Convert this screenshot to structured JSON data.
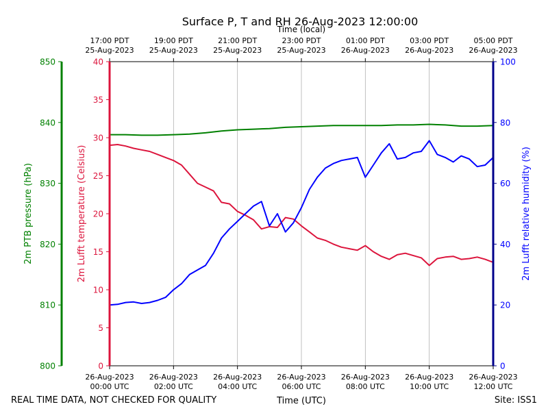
{
  "chart_data": {
    "type": "line",
    "title": "Surface P, T and RH 26-Aug-2023 12:00:00",
    "top_axis_label": "Time (local)",
    "bottom_axis_label": "Time (UTC)",
    "x_range_hours_utc": [
      0,
      12
    ],
    "top_ticks": [
      {
        "hour": 0,
        "time": "17:00 PDT",
        "date": "25-Aug-2023"
      },
      {
        "hour": 2,
        "time": "19:00 PDT",
        "date": "25-Aug-2023"
      },
      {
        "hour": 4,
        "time": "21:00 PDT",
        "date": "25-Aug-2023"
      },
      {
        "hour": 6,
        "time": "23:00 PDT",
        "date": "25-Aug-2023"
      },
      {
        "hour": 8,
        "time": "01:00 PDT",
        "date": "26-Aug-2023"
      },
      {
        "hour": 10,
        "time": "03:00 PDT",
        "date": "26-Aug-2023"
      },
      {
        "hour": 12,
        "time": "05:00 PDT",
        "date": "26-Aug-2023"
      }
    ],
    "bottom_ticks": [
      {
        "hour": 0,
        "date": "26-Aug-2023",
        "time": "00:00 UTC"
      },
      {
        "hour": 2,
        "date": "26-Aug-2023",
        "time": "02:00 UTC"
      },
      {
        "hour": 4,
        "date": "26-Aug-2023",
        "time": "04:00 UTC"
      },
      {
        "hour": 6,
        "date": "26-Aug-2023",
        "time": "06:00 UTC"
      },
      {
        "hour": 8,
        "date": "26-Aug-2023",
        "time": "08:00 UTC"
      },
      {
        "hour": 10,
        "date": "26-Aug-2023",
        "time": "10:00 UTC"
      },
      {
        "hour": 12,
        "date": "26-Aug-2023",
        "time": "12:00 UTC"
      }
    ],
    "axes": {
      "pressure": {
        "label": "2m PTB pressure (hPa)",
        "range": [
          800,
          850
        ],
        "ticks": [
          800,
          810,
          820,
          830,
          840,
          850
        ],
        "color": "#008000"
      },
      "temperature": {
        "label": "2m Lufft temperature (Celsius)",
        "range": [
          0,
          40
        ],
        "ticks": [
          0,
          5,
          10,
          15,
          20,
          25,
          30,
          35,
          40
        ],
        "color": "#dc143c"
      },
      "humidity": {
        "label": "2m Lufft relative humidity (%)",
        "range": [
          0,
          100
        ],
        "ticks": [
          0,
          20,
          40,
          60,
          80,
          100
        ],
        "color": "#0000ff"
      }
    },
    "series": [
      {
        "name": "pressure",
        "axis": "pressure",
        "color": "#008000",
        "x": [
          0,
          0.5,
          1,
          1.5,
          2,
          2.5,
          3,
          3.5,
          4,
          4.5,
          5,
          5.5,
          6,
          6.5,
          7,
          7.5,
          8,
          8.5,
          9,
          9.5,
          10,
          10.5,
          11,
          11.5,
          12
        ],
        "values": [
          838.0,
          838.0,
          837.9,
          837.9,
          838.0,
          838.1,
          838.3,
          838.6,
          838.8,
          838.9,
          839.0,
          839.2,
          839.3,
          839.4,
          839.5,
          839.5,
          839.5,
          839.5,
          839.6,
          839.6,
          839.7,
          839.6,
          839.4,
          839.4,
          839.5
        ]
      },
      {
        "name": "temperature",
        "axis": "temperature",
        "color": "#dc143c",
        "x": [
          0,
          0.25,
          0.5,
          0.75,
          1,
          1.25,
          1.5,
          1.75,
          2,
          2.25,
          2.5,
          2.75,
          3,
          3.25,
          3.5,
          3.75,
          4,
          4.25,
          4.5,
          4.75,
          5,
          5.25,
          5.5,
          5.75,
          6,
          6.25,
          6.5,
          6.75,
          7,
          7.25,
          7.5,
          7.75,
          8,
          8.25,
          8.5,
          8.75,
          9,
          9.25,
          9.5,
          9.75,
          10,
          10.25,
          10.5,
          10.75,
          11,
          11.25,
          11.5,
          11.75,
          12
        ],
        "values": [
          29.0,
          29.1,
          28.9,
          28.6,
          28.4,
          28.2,
          27.8,
          27.4,
          27.0,
          26.4,
          25.2,
          24.0,
          23.5,
          23.0,
          21.5,
          21.3,
          20.3,
          19.8,
          19.2,
          18.0,
          18.3,
          18.2,
          19.5,
          19.3,
          18.4,
          17.6,
          16.8,
          16.5,
          16.0,
          15.6,
          15.4,
          15.2,
          15.8,
          15.0,
          14.4,
          14.0,
          14.6,
          14.8,
          14.5,
          14.2,
          13.2,
          14.1,
          14.3,
          14.4,
          14.0,
          14.1,
          14.3,
          14.0,
          13.6
        ]
      },
      {
        "name": "humidity",
        "axis": "humidity",
        "color": "#0000ff",
        "x": [
          0,
          0.25,
          0.5,
          0.75,
          1,
          1.25,
          1.5,
          1.75,
          2,
          2.25,
          2.5,
          2.75,
          3,
          3.25,
          3.5,
          3.75,
          4,
          4.25,
          4.5,
          4.75,
          5,
          5.25,
          5.5,
          5.75,
          6,
          6.25,
          6.5,
          6.75,
          7,
          7.25,
          7.5,
          7.75,
          8,
          8.25,
          8.5,
          8.75,
          9,
          9.25,
          9.5,
          9.75,
          10,
          10.25,
          10.5,
          10.75,
          11,
          11.25,
          11.5,
          11.75,
          12
        ],
        "values": [
          20.0,
          20.2,
          20.8,
          21.0,
          20.5,
          20.8,
          21.5,
          22.5,
          25.0,
          27.0,
          30.0,
          31.5,
          33.0,
          37.0,
          42.0,
          45.0,
          47.5,
          50.0,
          52.5,
          54.0,
          46.0,
          50.0,
          44.0,
          47.0,
          52.0,
          58.0,
          62.0,
          65.0,
          66.5,
          67.5,
          68.0,
          68.5,
          62.0,
          66.0,
          70.0,
          73.0,
          68.0,
          68.5,
          70.0,
          70.5,
          74.0,
          69.5,
          68.5,
          67.0,
          69.0,
          68.0,
          65.5,
          66.0,
          68.5
        ]
      }
    ]
  },
  "footer": {
    "left": "REAL TIME DATA, NOT CHECKED FOR QUALITY",
    "right": "Site: ISS1"
  }
}
